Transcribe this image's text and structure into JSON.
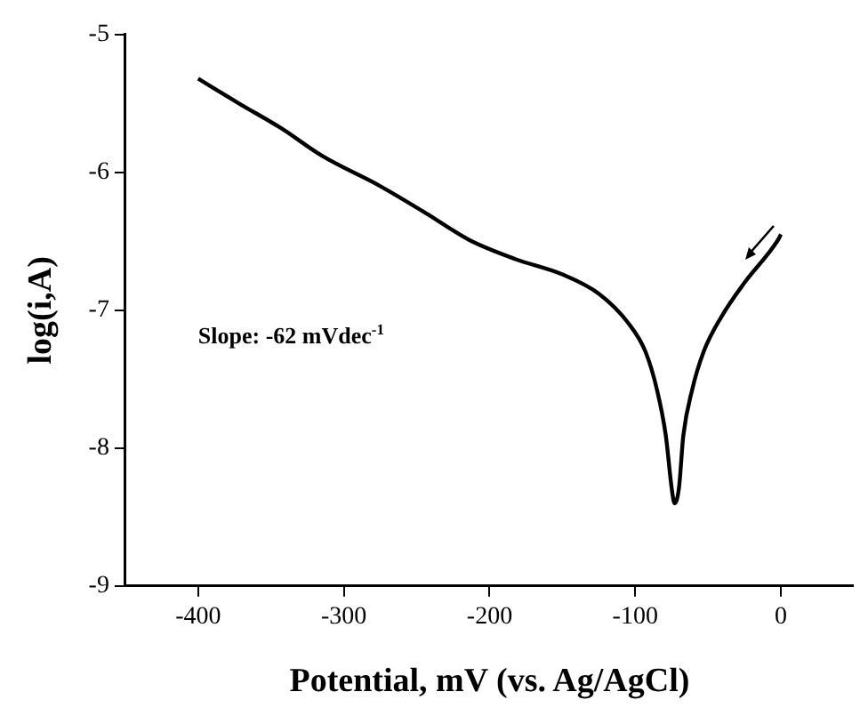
{
  "chart_data": {
    "type": "line",
    "xlabel": "Potential, mV (vs. Ag/AgCl)",
    "ylabel": "log(i,A)",
    "annotations": [
      "Slope: -62 mVdec$^{-1}$"
    ],
    "x": [
      -400,
      -372,
      -343,
      -315,
      -275,
      -243,
      -214,
      -182,
      -150,
      -125,
      -105,
      -93,
      -85,
      -79,
      -75,
      -73,
      -70,
      -67,
      -61,
      -53,
      -41,
      -25,
      -2,
      0
    ],
    "series": [
      {
        "color": "#000000",
        "values": [
          -5.32,
          -5.5,
          -5.68,
          -5.88,
          -6.1,
          -6.3,
          -6.49,
          -6.63,
          -6.74,
          -6.88,
          -7.09,
          -7.3,
          -7.58,
          -7.91,
          -8.29,
          -8.4,
          -8.29,
          -7.91,
          -7.58,
          -7.3,
          -7.05,
          -6.8,
          -6.49,
          -6.45
        ]
      }
    ],
    "xlim": [
      -450,
      50
    ],
    "xticks": [
      -400,
      -300,
      -200,
      -100,
      0
    ],
    "ylim": [
      -9,
      -5
    ],
    "yticks": [
      -9,
      -8,
      -7,
      -6,
      -5
    ],
    "grid": false,
    "legend": false,
    "marker": "none",
    "line_style": "solid"
  }
}
